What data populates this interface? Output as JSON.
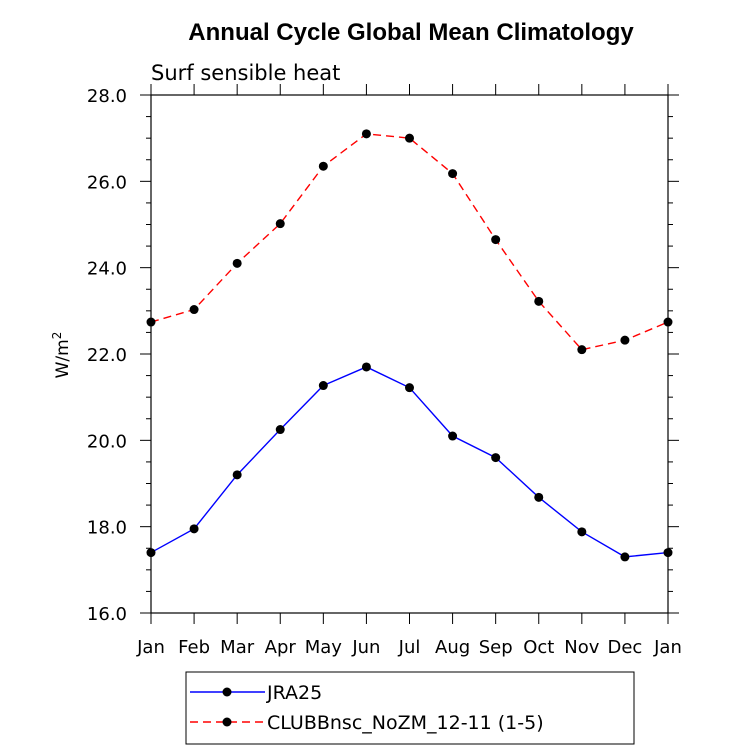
{
  "chart_data": {
    "type": "line",
    "title": "Annual Cycle Global Mean Climatology",
    "subtitle": "Surf sensible heat",
    "ylabel_base": "W/m",
    "ylabel_sup": "2",
    "xlabel": "",
    "categories": [
      "Jan",
      "Feb",
      "Mar",
      "Apr",
      "May",
      "Jun",
      "Jul",
      "Aug",
      "Sep",
      "Oct",
      "Nov",
      "Dec",
      "Jan"
    ],
    "ylim": [
      16.0,
      28.0
    ],
    "yticks": [
      "16.0",
      "18.0",
      "20.0",
      "22.0",
      "24.0",
      "26.0",
      "28.0"
    ],
    "ytick_values": [
      16,
      18,
      20,
      22,
      24,
      26,
      28
    ],
    "grid": false,
    "legend_position": "bottom",
    "series": [
      {
        "name": "JRA25",
        "color": "#0000ff",
        "dash": "solid",
        "values": [
          17.4,
          17.95,
          19.2,
          20.25,
          21.27,
          21.7,
          21.22,
          20.1,
          19.6,
          18.68,
          17.88,
          17.3,
          17.4
        ]
      },
      {
        "name": "CLUBBnsc_NoZM_12-11 (1-5)",
        "color": "#ff0000",
        "dash": "dashed",
        "values": [
          22.74,
          23.03,
          24.1,
          25.02,
          26.35,
          27.1,
          27.0,
          26.18,
          24.65,
          23.22,
          22.1,
          22.32,
          22.74
        ]
      }
    ]
  }
}
